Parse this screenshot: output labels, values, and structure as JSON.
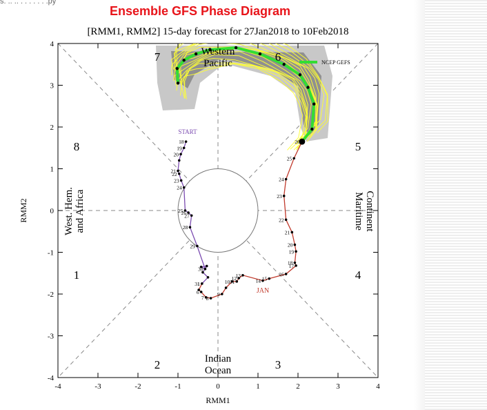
{
  "header": {
    "cut_text": "s. .. .. . . . . . . .py",
    "title": "Ensemble GFS Phase Diagram"
  },
  "chart_data": {
    "type": "scatter",
    "subtitle": "[RMM1, RMM2] 15-day forecast for 27Jan2018 to 10Feb2018",
    "xlabel": "RMM1",
    "ylabel": "RMM2",
    "xlim": [
      -4,
      4
    ],
    "ylim": [
      -4,
      4
    ],
    "xticks": [
      "-4",
      "-3",
      "-2",
      "-1",
      "0",
      "1",
      "2",
      "3",
      "4"
    ],
    "yticks": [
      "-4",
      "-3",
      "-2",
      "-1",
      "0",
      "1",
      "2",
      "3",
      "4"
    ],
    "phase_numbers": [
      "1",
      "2",
      "3",
      "4",
      "5",
      "6",
      "7",
      "8"
    ],
    "region_labels": {
      "west": [
        "West. Hem.",
        "and Africa"
      ],
      "east": [
        "Maritime",
        "Continent"
      ],
      "south": [
        "Indian",
        "Ocean"
      ],
      "north": [
        "Western",
        "Pacific"
      ]
    },
    "legend": {
      "label": "NCEP GEFS",
      "color": "#33dd33",
      "placement": "top-right"
    },
    "start_label": "START",
    "month_label": "JAN",
    "colors": {
      "title": "#e8141a",
      "dec_track": "#7b4bb0",
      "jan_track": "#c0392b",
      "members": "#ffff33",
      "ensemble_mean": "#33dd33",
      "spread_outer": "#c8c8c8",
      "spread_inner": "#909090"
    },
    "observed_dec": [
      {
        "day": "18",
        "x": -0.8,
        "y": 1.65
      },
      {
        "day": "19",
        "x": -0.85,
        "y": 1.5
      },
      {
        "day": "20",
        "x": -0.93,
        "y": 1.35
      },
      {
        "day": "",
        "x": -0.97,
        "y": 1.2
      },
      {
        "day": "21",
        "x": -1.0,
        "y": 0.95
      },
      {
        "day": "22",
        "x": -0.97,
        "y": 0.88
      },
      {
        "day": "23",
        "x": -0.92,
        "y": 0.72
      },
      {
        "day": "24",
        "x": -0.85,
        "y": 0.55
      },
      {
        "day": "25",
        "x": -0.82,
        "y": 0.0
      },
      {
        "day": "26",
        "x": -0.74,
        "y": -0.05
      },
      {
        "day": "27",
        "x": -0.66,
        "y": -0.12
      },
      {
        "day": "28",
        "x": -0.7,
        "y": -0.4
      },
      {
        "day": "29",
        "x": -0.52,
        "y": -0.85
      },
      {
        "day": "30",
        "x": -0.32,
        "y": -1.4
      },
      {
        "day": "",
        "x": -0.42,
        "y": -1.35
      },
      {
        "day": "",
        "x": -0.28,
        "y": -1.33
      },
      {
        "day": "",
        "x": -0.38,
        "y": -1.48
      },
      {
        "day": "",
        "x": -0.25,
        "y": -1.6
      },
      {
        "day": "31",
        "x": -0.4,
        "y": -1.75
      }
    ],
    "observed_jan": [
      {
        "day": "1",
        "x": -0.4,
        "y": -1.75
      },
      {
        "day": "",
        "x": -0.48,
        "y": -1.9
      },
      {
        "day": "6",
        "x": -0.42,
        "y": -1.95
      },
      {
        "day": "7",
        "x": -0.3,
        "y": -2.08
      },
      {
        "day": "8",
        "x": -0.18,
        "y": -2.1
      },
      {
        "day": "9",
        "x": 0.1,
        "y": -2.0
      },
      {
        "day": "",
        "x": 0.2,
        "y": -1.85
      },
      {
        "day": "10",
        "x": 0.35,
        "y": -1.7
      },
      {
        "day": "11",
        "x": 0.47,
        "y": -1.7
      },
      {
        "day": "12",
        "x": 0.52,
        "y": -1.62
      },
      {
        "day": "13",
        "x": 0.62,
        "y": -1.55
      },
      {
        "day": "14",
        "x": 1.12,
        "y": -1.68
      },
      {
        "day": "15",
        "x": 1.28,
        "y": -1.63
      },
      {
        "day": "16",
        "x": 1.7,
        "y": -1.52
      },
      {
        "day": "17",
        "x": 1.95,
        "y": -1.32
      },
      {
        "day": "18",
        "x": 1.92,
        "y": -1.25
      },
      {
        "day": "19",
        "x": 1.95,
        "y": -0.98
      },
      {
        "day": "20",
        "x": 1.92,
        "y": -0.82
      },
      {
        "day": "21",
        "x": 1.85,
        "y": -0.52
      },
      {
        "day": "22",
        "x": 1.7,
        "y": -0.22
      },
      {
        "day": "23",
        "x": 1.65,
        "y": 0.35
      },
      {
        "day": "24",
        "x": 1.7,
        "y": 0.75
      },
      {
        "day": "25",
        "x": 1.9,
        "y": 1.25
      },
      {
        "day": "26",
        "x": 2.1,
        "y": 1.65
      }
    ],
    "ensemble_mean": [
      {
        "x": 2.1,
        "y": 1.65
      },
      {
        "x": 2.35,
        "y": 1.95
      },
      {
        "x": 2.4,
        "y": 2.55
      },
      {
        "x": 2.25,
        "y": 2.95
      },
      {
        "x": 2.05,
        "y": 3.25
      },
      {
        "x": 1.65,
        "y": 3.5
      },
      {
        "x": 1.05,
        "y": 3.75
      },
      {
        "x": 0.45,
        "y": 3.9
      },
      {
        "x": -0.2,
        "y": 3.85
      },
      {
        "x": -0.55,
        "y": 3.75
      },
      {
        "x": -0.85,
        "y": 3.6
      },
      {
        "x": -1.02,
        "y": 3.4
      },
      {
        "x": -1.0,
        "y": 3.05
      }
    ]
  }
}
